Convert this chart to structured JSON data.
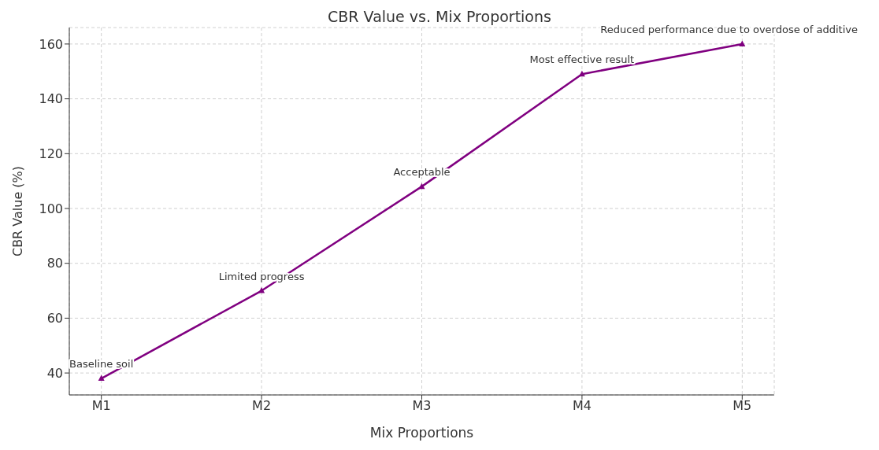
{
  "chart_data": {
    "type": "line",
    "title": "CBR Value vs. Mix Proportions",
    "xlabel": "Mix Proportions",
    "ylabel": "CBR Value (%)",
    "categories": [
      "M1",
      "M2",
      "M3",
      "M4",
      "M5"
    ],
    "series": [
      {
        "color": "#800080",
        "values": [
          38,
          70,
          108,
          149,
          160
        ]
      }
    ],
    "ylim": [
      32,
      166
    ],
    "yticks": [
      40,
      60,
      80,
      100,
      120,
      140,
      160
    ],
    "grid": true,
    "marker": "triangle",
    "line_style": "solid",
    "legend": false,
    "annotations": [
      {
        "text": "Baseline soil",
        "x": "M1",
        "y": 38
      },
      {
        "text": "Limited progress",
        "x": "M2",
        "y": 70
      },
      {
        "text": "Acceptable",
        "x": "M3",
        "y": 108
      },
      {
        "text": "Most effective result",
        "x": "M4",
        "y": 149
      },
      {
        "text": "Reduced performance due to overdose of additive",
        "x": "M5",
        "y": 160
      }
    ]
  }
}
